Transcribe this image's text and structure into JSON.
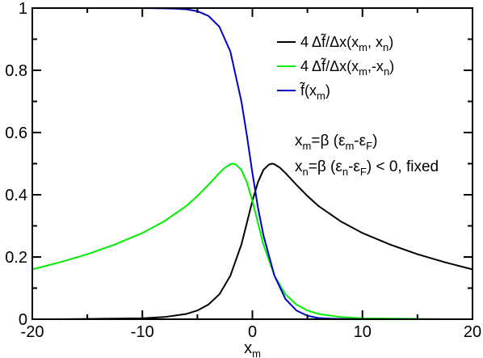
{
  "chart_data": {
    "type": "line",
    "title": "",
    "xlabel": {
      "main": "x",
      "sub": "m"
    },
    "ylabel": "",
    "xlim": [
      -20,
      20
    ],
    "ylim": [
      0,
      1
    ],
    "xticks": [
      -20,
      -10,
      0,
      10,
      20
    ],
    "yticks": [
      0,
      0.2,
      0.4,
      0.6,
      0.8,
      1
    ],
    "xtick_labels": [
      "-20",
      "-10",
      "0",
      "10",
      "20"
    ],
    "ytick_labels": [
      "0",
      "0.2",
      "0.4",
      "0.6",
      "0.8",
      "1"
    ],
    "grid": false,
    "legend_position": "top-right",
    "legend": [
      {
        "series": "black",
        "parts": [
          {
            "t": "4 Δ"
          },
          {
            "t": "f̃"
          },
          {
            "t": "/Δx(x"
          },
          {
            "t": "m",
            "sub": true
          },
          {
            "t": ", x"
          },
          {
            "t": "n",
            "sub": true
          },
          {
            "t": ")"
          }
        ]
      },
      {
        "series": "green",
        "parts": [
          {
            "t": "4 Δ"
          },
          {
            "t": "f̃"
          },
          {
            "t": "/Δx(x"
          },
          {
            "t": "m",
            "sub": true
          },
          {
            "t": ",-x"
          },
          {
            "t": "n",
            "sub": true
          },
          {
            "t": ")"
          }
        ]
      },
      {
        "series": "blue",
        "parts": [
          {
            "t": "f̃"
          },
          {
            "t": "(x"
          },
          {
            "t": "m",
            "sub": true
          },
          {
            "t": ")"
          }
        ]
      }
    ],
    "annotations": [
      [
        {
          "t": "x"
        },
        {
          "t": "m",
          "sub": true
        },
        {
          "t": "=β (ε"
        },
        {
          "t": "m",
          "sub": true
        },
        {
          "t": "-ε"
        },
        {
          "t": "F",
          "sub": true
        },
        {
          "t": ")"
        }
      ],
      [
        {
          "t": "x"
        },
        {
          "t": "n",
          "sub": true
        },
        {
          "t": "=β (ε"
        },
        {
          "t": "n",
          "sub": true
        },
        {
          "t": "-ε"
        },
        {
          "t": "F",
          "sub": true
        },
        {
          "t": ") < 0, fixed"
        }
      ]
    ],
    "series": [
      {
        "key": "black",
        "color": "#000000",
        "x": [
          -20,
          -17.5,
          -15,
          -12.5,
          -10,
          -8,
          -6,
          -5,
          -4,
          -3,
          -2,
          -1,
          0,
          0.5,
          1,
          1.5,
          1.8,
          2,
          2.5,
          3,
          4,
          5,
          6,
          8,
          10,
          12.5,
          15,
          17.5,
          20
        ],
        "y": [
          0.0,
          0.0,
          0.001,
          0.002,
          0.003,
          0.007,
          0.017,
          0.028,
          0.047,
          0.08,
          0.14,
          0.24,
          0.38,
          0.44,
          0.48,
          0.497,
          0.5,
          0.498,
          0.487,
          0.47,
          0.432,
          0.396,
          0.364,
          0.315,
          0.277,
          0.24,
          0.209,
          0.183,
          0.16
        ]
      },
      {
        "key": "green",
        "color": "#00ee00",
        "x": [
          -20,
          -17.5,
          -15,
          -12.5,
          -10,
          -8,
          -6,
          -5,
          -4,
          -3,
          -2.5,
          -2,
          -1.8,
          -1.5,
          -1,
          -0.5,
          0,
          1,
          2,
          3,
          4,
          5,
          6,
          8,
          10,
          12.5,
          15,
          17.5,
          20
        ],
        "y": [
          0.16,
          0.183,
          0.209,
          0.24,
          0.277,
          0.315,
          0.364,
          0.396,
          0.432,
          0.47,
          0.487,
          0.498,
          0.5,
          0.497,
          0.48,
          0.44,
          0.38,
          0.24,
          0.14,
          0.08,
          0.047,
          0.028,
          0.017,
          0.007,
          0.003,
          0.002,
          0.001,
          0.0,
          0.0
        ]
      },
      {
        "key": "blue",
        "color": "#0000cc",
        "x": [
          -20,
          -10,
          -8,
          -7,
          -6,
          -5,
          -4,
          -3,
          -2,
          -1,
          -0.5,
          0,
          0.5,
          1,
          2,
          3,
          4,
          5,
          6,
          7,
          8,
          10,
          20
        ],
        "y": [
          1.0,
          1.0,
          0.999,
          0.998,
          0.996,
          0.99,
          0.975,
          0.94,
          0.86,
          0.7,
          0.59,
          0.47,
          0.36,
          0.27,
          0.14,
          0.065,
          0.028,
          0.011,
          0.004,
          0.002,
          0.001,
          0.0,
          0.0
        ]
      }
    ]
  }
}
